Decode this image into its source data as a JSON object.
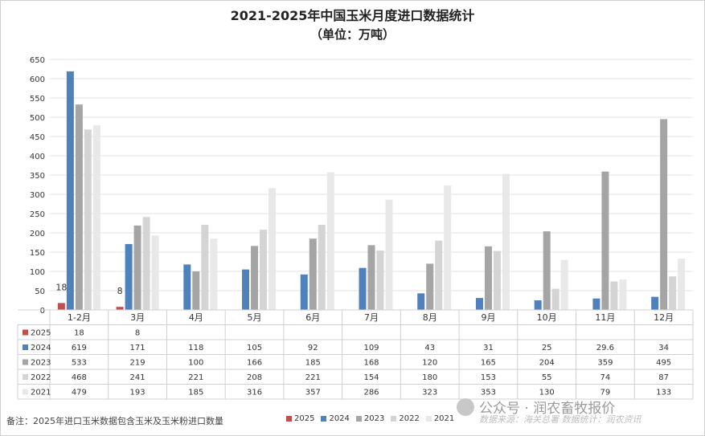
{
  "title": "2021-2025年中国玉米月度进口数据统计",
  "subtitle": "（单位：万吨）",
  "footnote": "备注：2025年进口玉米数据包含玉米及玉米粉进口数量",
  "watermark": "公众号 · 润农畜牧报价",
  "source": "数据来源：海关总署 数据统计：润农资讯",
  "chart_data": {
    "type": "bar",
    "categories": [
      "1-2月",
      "3月",
      "4月",
      "5月",
      "6月",
      "7月",
      "8月",
      "9月",
      "10月",
      "11月",
      "12月"
    ],
    "ylim": [
      0,
      650
    ],
    "yticks": [
      0,
      50,
      100,
      150,
      200,
      250,
      300,
      350,
      400,
      450,
      500,
      550,
      600,
      650
    ],
    "grid": true,
    "legend": "bottom",
    "series": [
      {
        "name": "2025",
        "color": "#c0504d",
        "values": [
          18,
          8,
          null,
          null,
          null,
          null,
          null,
          null,
          null,
          null,
          null
        ],
        "labels": [
          "18",
          "8",
          "",
          "",
          "",
          "",
          "",
          "",
          "",
          "",
          ""
        ],
        "show_labels": true
      },
      {
        "name": "2024",
        "color": "#4f81bd",
        "values": [
          619,
          171,
          118,
          105,
          92,
          109,
          43,
          31,
          25,
          29.6,
          34
        ],
        "labels": [
          "619",
          "171",
          "118",
          "105",
          "92",
          "109",
          "43",
          "31",
          "25",
          "29.6",
          "34"
        ]
      },
      {
        "name": "2023",
        "color": "#a5a5a5",
        "values": [
          533,
          219,
          100,
          166,
          185,
          168,
          120,
          165,
          204,
          359,
          495
        ],
        "labels": [
          "533",
          "219",
          "100",
          "166",
          "185",
          "168",
          "120",
          "165",
          "204",
          "359",
          "495"
        ]
      },
      {
        "name": "2022",
        "color": "#d4d4d4",
        "values": [
          468,
          241,
          221,
          208,
          221,
          154,
          180,
          153,
          55,
          74,
          87
        ],
        "labels": [
          "468",
          "241",
          "221",
          "208",
          "221",
          "154",
          "180",
          "153",
          "55",
          "74",
          "87"
        ]
      },
      {
        "name": "2021",
        "color": "#e8e8e8",
        "values": [
          479,
          193,
          185,
          316,
          357,
          286,
          323,
          353,
          130,
          79,
          133
        ],
        "labels": [
          "479",
          "193",
          "185",
          "316",
          "357",
          "286",
          "323",
          "353",
          "130",
          "79",
          "133"
        ]
      }
    ]
  }
}
